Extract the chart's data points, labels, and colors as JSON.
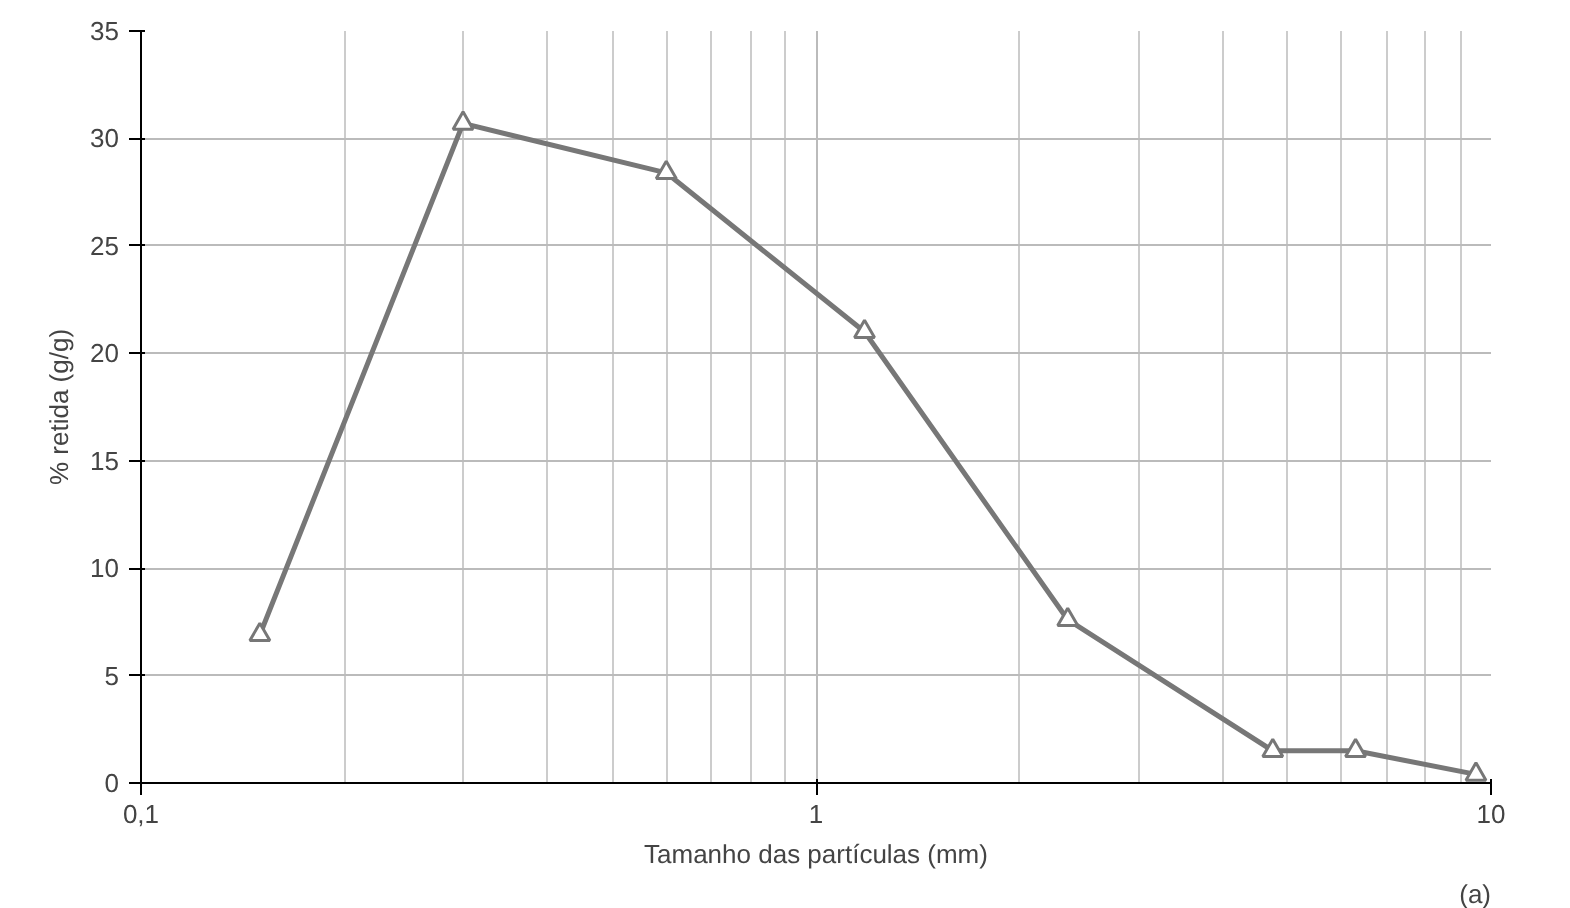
{
  "chart_data": {
    "type": "line",
    "xlabel": "Tamanho das partículas (mm)",
    "ylabel": "% retida (g/g)",
    "annotations": [
      "(a)"
    ],
    "log": "x",
    "x": [
      0.15,
      0.3,
      0.6,
      1.18,
      2.36,
      4.75,
      6.3,
      9.5
    ],
    "series": [
      {
        "color": "#777777",
        "values": [
          6.9,
          30.7,
          28.4,
          21.0,
          7.6,
          1.5,
          1.5,
          0.4
        ]
      }
    ],
    "xlim": [
      0.1,
      10
    ],
    "xticks": [
      {
        "value": 0.1,
        "label": "0,1"
      },
      1,
      10
    ],
    "ylim": [
      0,
      35
    ],
    "yticks": [
      0,
      5,
      10,
      15,
      20,
      25,
      30,
      35
    ],
    "grid": true,
    "marker": "triangle",
    "line_style": "solid"
  }
}
